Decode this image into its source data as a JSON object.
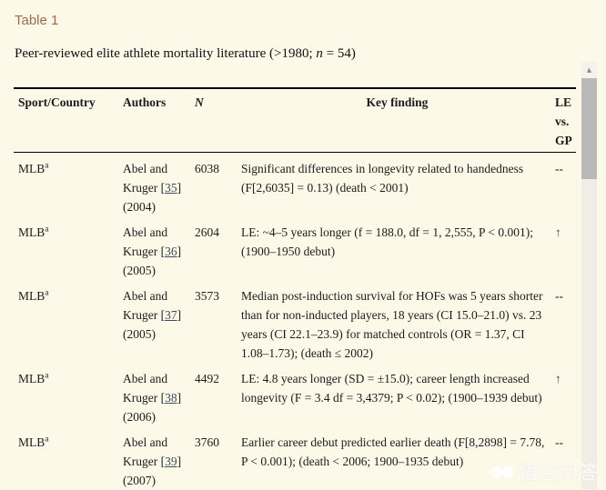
{
  "header": {
    "title": "Table 1",
    "caption_pre": "Peer-reviewed elite athlete mortality literature (>1980; ",
    "caption_n": "n",
    "caption_post": " = 54)"
  },
  "table": {
    "columns": {
      "sport": "Sport/Country",
      "authors": "Authors",
      "n": "N",
      "key": "Key finding",
      "le": "LE vs. GP"
    },
    "rows": [
      {
        "sport": "MLB",
        "sup": "a",
        "authors_pre": "Abel and Kruger [",
        "ref": "35",
        "authors_post": "]",
        "year": " (2004)",
        "n": "6038",
        "key": "Significant differences in longevity related to handedness (F[2,6035] = 0.13) (death < 2001)",
        "le": "--"
      },
      {
        "sport": "MLB",
        "sup": "a",
        "authors_pre": "Abel and Kruger [",
        "ref": "36",
        "authors_post": "]",
        "year": " (2005)",
        "n": "2604",
        "key": "LE: ~4–5 years longer (f = 188.0, df = 1, 2,555, P < 0.001); (1900–1950 debut)",
        "le": "↑"
      },
      {
        "sport": "MLB",
        "sup": "a",
        "authors_pre": "Abel and Kruger [",
        "ref": "37",
        "authors_post": "]",
        "year": " (2005)",
        "n": "3573",
        "key": "Median post-induction survival for HOFs was 5 years shorter than for non-inducted players, 18 years (CI 15.0–21.0) vs. 23 years (CI 22.1–23.9) for matched controls (OR = 1.37, CI 1.08–1.73); (death ≤ 2002)",
        "le": "--"
      },
      {
        "sport": "MLB",
        "sup": "a",
        "authors_pre": "Abel and Kruger [",
        "ref": "38",
        "authors_post": "]",
        "year": " (2006)",
        "n": "4492",
        "key": "LE: 4.8 years longer (SD = ±15.0); career length increased longevity (F = 3.4 df = 3,4379; P < 0.02); (1900–1939 debut)",
        "le": "↑"
      },
      {
        "sport": "MLB",
        "sup": "a",
        "authors_pre": "Abel and Kruger [",
        "ref": "39",
        "authors_post": "]",
        "year": " (2007)",
        "n": "3760",
        "key": "Earlier career debut predicted earlier death (F[8,2898] = 7.78, P < 0.001); (death < 2006; 1900–1935 debut)",
        "le": "--"
      }
    ]
  },
  "scrollbar": {
    "up_arrow": "▲"
  },
  "watermark": {
    "text": "悟空问答",
    "icon": "cloud-icon"
  },
  "colors": {
    "background": "#fdf9e8",
    "title": "#9d6b4c",
    "text": "#1c1c1c",
    "link": "#3c4a63",
    "scroll_thumb": "#b9b9b9",
    "scroll_track": "#efede6"
  }
}
